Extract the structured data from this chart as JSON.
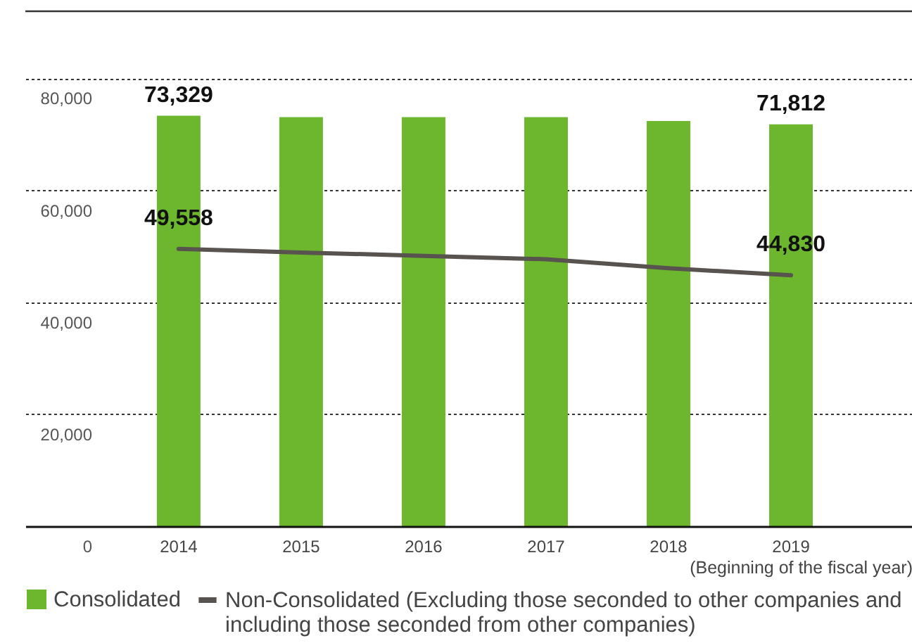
{
  "chart_data": {
    "type": "bar",
    "xlabel": "(Beginning of the fiscal year)",
    "categories": [
      "2014",
      "2015",
      "2016",
      "2017",
      "2018",
      "2019"
    ],
    "series": [
      {
        "name": "Consolidated",
        "color": "#6cb72d",
        "values": [
          73329,
          73100,
          73100,
          73100,
          72400,
          71812
        ],
        "value_labels": [
          "73,329",
          null,
          null,
          null,
          null,
          "71,812"
        ]
      },
      {
        "name": "Non-Consolidated (Excluding those seconded to other companies and including those seconded from other companies)",
        "type": "line",
        "color": "#595350",
        "line_style": "solid",
        "values": [
          49558,
          48900,
          48300,
          47700,
          46100,
          44830
        ],
        "value_labels": [
          "49,558",
          null,
          null,
          null,
          null,
          "44,830"
        ]
      }
    ],
    "ylim": [
      0,
      92000
    ],
    "yticks": [
      0,
      {
        "value": 20000,
        "label": "20,000"
      },
      {
        "value": 40000,
        "label": "40,000"
      },
      {
        "value": 60000,
        "label": "60,000"
      },
      {
        "value": 80000,
        "label": "80,000"
      }
    ],
    "grid": "y",
    "legend": "bottom"
  }
}
